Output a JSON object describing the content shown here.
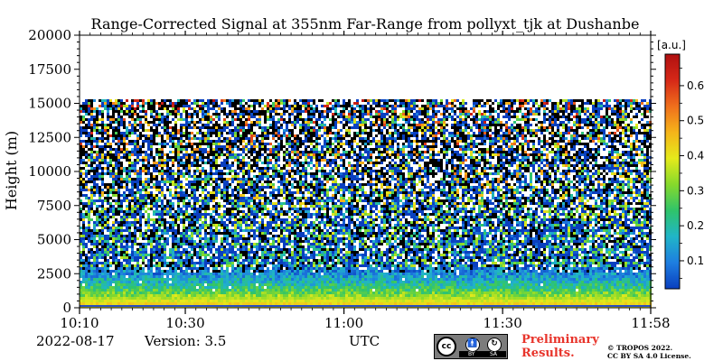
{
  "chart_data": {
    "type": "heatmap",
    "title": "Range-Corrected Signal at 355nm Far-Range from pollyxt_tjk at Dushanbe",
    "xlabel": "UTC",
    "ylabel": "Height (m)",
    "x_ticks": [
      "10:10",
      "10:30",
      "11:00",
      "11:30",
      "11:58"
    ],
    "x_tick_minutes": [
      0,
      20,
      50,
      80,
      108
    ],
    "y_ticks": [
      0,
      2500,
      5000,
      7500,
      10000,
      12500,
      15000,
      17500,
      20000
    ],
    "ylim": [
      0,
      20000
    ],
    "data_top_height": 15300,
    "colorbar": {
      "label": "[a.u.]",
      "ticks": [
        0.1,
        0.2,
        0.3,
        0.4,
        0.5,
        0.6
      ],
      "range": [
        0.02,
        0.69
      ],
      "colors": [
        "#0a3fbf",
        "#1e7ee0",
        "#20b5c8",
        "#2fc46a",
        "#86d92c",
        "#e5ea1b",
        "#f5b41a",
        "#ef6f1c",
        "#d62818",
        "#b01010"
      ]
    },
    "profile": [
      {
        "height": 0,
        "value": 0.38
      },
      {
        "height": 200,
        "value": 0.44
      },
      {
        "height": 500,
        "value": 0.38
      },
      {
        "height": 1000,
        "value": 0.3
      },
      {
        "height": 1500,
        "value": 0.22
      },
      {
        "height": 2000,
        "value": 0.16
      },
      {
        "height": 2500,
        "value": 0.11
      },
      {
        "height": 3500,
        "value": 0.06
      },
      {
        "height": 5000,
        "value": 0.035
      },
      {
        "height": 15300,
        "value": 0.02
      }
    ]
  },
  "footer": {
    "date": "2022-08-17",
    "version": "Version: 3.5",
    "utc": "UTC",
    "preliminary_line1": "Preliminary",
    "preliminary_line2": "Results.",
    "copyright_line1": "© TROPOS 2022.",
    "copyright_line2": "CC BY SA 4.0 License."
  },
  "license_badge": {
    "cc": "cc",
    "by": "BY",
    "sa": "SA"
  }
}
